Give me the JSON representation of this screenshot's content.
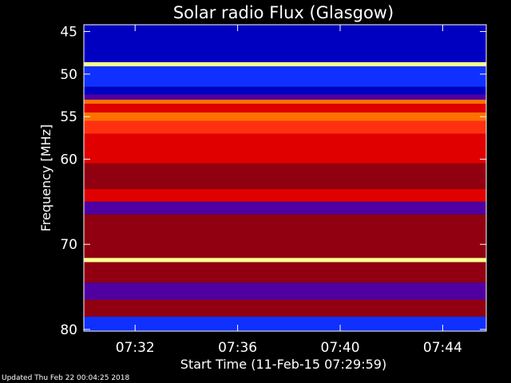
{
  "colors": {
    "background": "#000000",
    "text": "#ffffff",
    "axis": "#ffffff",
    "colormap": [
      "#000020",
      "#0000c0",
      "#1030ff",
      "#5000a0",
      "#900010",
      "#e00000",
      "#ff3010",
      "#ff7000",
      "#ffc030",
      "#ffff90"
    ]
  },
  "chart_data": {
    "type": "heatmap",
    "title": "Solar radio Flux (Glasgow)",
    "xlabel": "Start Time (11-Feb-15 07:29:59)",
    "ylabel": "Frequency [MHz]",
    "xlim_minutes": [
      0,
      15.7
    ],
    "ylim": [
      44.2,
      80.2
    ],
    "y_inverted": true,
    "y_ticks": [
      {
        "value": 45,
        "label": "45"
      },
      {
        "value": 50,
        "label": "50"
      },
      {
        "value": 55,
        "label": "55"
      },
      {
        "value": 60,
        "label": "60"
      },
      {
        "value": 70,
        "label": "70"
      },
      {
        "value": 80,
        "label": "80"
      }
    ],
    "x_ticks": [
      {
        "value": 2.0,
        "label": "07:32"
      },
      {
        "value": 6.0,
        "label": "07:36"
      },
      {
        "value": 10.0,
        "label": "07:40"
      },
      {
        "value": 14.0,
        "label": "07:44"
      }
    ],
    "frequency_bands": [
      {
        "from": 44.2,
        "to": 45.0,
        "level": 1
      },
      {
        "from": 45.0,
        "to": 48.6,
        "level": 1
      },
      {
        "from": 48.6,
        "to": 49.1,
        "level": 9
      },
      {
        "from": 49.1,
        "to": 51.5,
        "level": 2
      },
      {
        "from": 51.5,
        "to": 52.4,
        "level": 1
      },
      {
        "from": 52.4,
        "to": 53.0,
        "level": 3
      },
      {
        "from": 53.0,
        "to": 53.5,
        "level": 7
      },
      {
        "from": 53.5,
        "to": 54.5,
        "level": 5
      },
      {
        "from": 54.5,
        "to": 55.5,
        "level": 7
      },
      {
        "from": 55.5,
        "to": 57.0,
        "level": 6
      },
      {
        "from": 57.0,
        "to": 60.5,
        "level": 5
      },
      {
        "from": 60.5,
        "to": 63.5,
        "level": 4
      },
      {
        "from": 63.5,
        "to": 65.0,
        "level": 5
      },
      {
        "from": 65.0,
        "to": 66.5,
        "level": 3
      },
      {
        "from": 66.5,
        "to": 71.6,
        "level": 4
      },
      {
        "from": 71.6,
        "to": 72.1,
        "level": 9
      },
      {
        "from": 72.1,
        "to": 74.5,
        "level": 4
      },
      {
        "from": 74.5,
        "to": 76.5,
        "level": 3
      },
      {
        "from": 76.5,
        "to": 78.5,
        "level": 4
      },
      {
        "from": 78.5,
        "to": 80.2,
        "level": 2
      }
    ],
    "grid": false
  },
  "footer": {
    "updated_text": "Updated Thu Feb 22 00:04:25 2018"
  }
}
